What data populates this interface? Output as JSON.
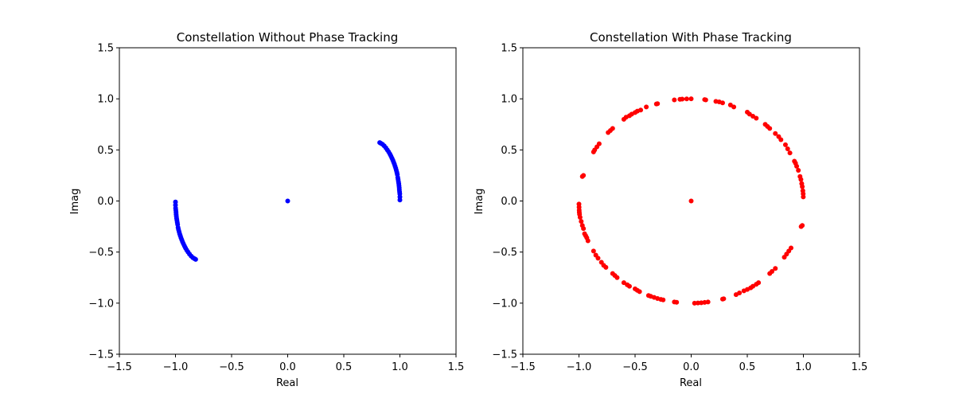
{
  "chart_data": [
    {
      "type": "scatter",
      "title": "Constellation Without Phase Tracking",
      "xlabel": "Real",
      "ylabel": "Imag",
      "xlim": [
        -1.5,
        1.5
      ],
      "ylim": [
        -1.5,
        1.5
      ],
      "xticks": [
        -1.5,
        -1.0,
        -0.5,
        0.0,
        0.5,
        1.0,
        1.5
      ],
      "yticks": [
        -1.5,
        -1.0,
        -0.5,
        0.0,
        0.5,
        1.0,
        1.5
      ],
      "xtick_labels": [
        "−1.5",
        "−1.0",
        "−0.5",
        "0.0",
        "0.5",
        "1.0",
        "1.5"
      ],
      "ytick_labels": [
        "−1.5",
        "−1.0",
        "−0.5",
        "0.0",
        "0.5",
        "1.0",
        "1.5"
      ],
      "grid": false,
      "color": "#0000ff",
      "series": [
        {
          "points": [
            [
              1.0,
              0.01
            ],
            [
              1.0,
              0.04
            ],
            [
              0.999,
              0.07
            ],
            [
              0.997,
              0.09
            ],
            [
              0.995,
              0.11
            ],
            [
              0.994,
              0.13
            ],
            [
              0.992,
              0.15
            ],
            [
              0.99,
              0.17
            ],
            [
              0.987,
              0.19
            ],
            [
              0.984,
              0.21
            ],
            [
              0.981,
              0.23
            ],
            [
              0.977,
              0.26
            ],
            [
              0.973,
              0.28
            ],
            [
              0.968,
              0.3
            ],
            [
              0.963,
              0.32
            ],
            [
              0.957,
              0.34
            ],
            [
              0.951,
              0.36
            ],
            [
              0.944,
              0.38
            ],
            [
              0.937,
              0.4
            ],
            [
              0.929,
              0.42
            ],
            [
              0.92,
              0.44
            ],
            [
              0.911,
              0.46
            ],
            [
              0.9,
              0.48
            ],
            [
              0.888,
              0.5
            ],
            [
              0.875,
              0.52
            ],
            [
              0.86,
              0.54
            ],
            [
              0.845,
              0.555
            ],
            [
              0.83,
              0.565
            ],
            [
              0.82,
              0.572
            ],
            [
              -1.0,
              -0.01
            ],
            [
              -1.0,
              -0.04
            ],
            [
              -0.999,
              -0.07
            ],
            [
              -0.997,
              -0.09
            ],
            [
              -0.995,
              -0.11
            ],
            [
              -0.994,
              -0.13
            ],
            [
              -0.992,
              -0.15
            ],
            [
              -0.99,
              -0.17
            ],
            [
              -0.987,
              -0.19
            ],
            [
              -0.984,
              -0.21
            ],
            [
              -0.981,
              -0.23
            ],
            [
              -0.977,
              -0.26
            ],
            [
              -0.973,
              -0.28
            ],
            [
              -0.968,
              -0.3
            ],
            [
              -0.963,
              -0.32
            ],
            [
              -0.957,
              -0.34
            ],
            [
              -0.951,
              -0.36
            ],
            [
              -0.944,
              -0.38
            ],
            [
              -0.937,
              -0.4
            ],
            [
              -0.929,
              -0.42
            ],
            [
              -0.92,
              -0.44
            ],
            [
              -0.911,
              -0.46
            ],
            [
              -0.9,
              -0.48
            ],
            [
              -0.888,
              -0.5
            ],
            [
              -0.875,
              -0.52
            ],
            [
              -0.86,
              -0.54
            ],
            [
              -0.845,
              -0.555
            ],
            [
              -0.83,
              -0.565
            ],
            [
              -0.82,
              -0.572
            ],
            [
              0.0,
              0.0
            ]
          ]
        }
      ]
    },
    {
      "type": "scatter",
      "title": "Constellation With Phase Tracking",
      "xlabel": "Real",
      "ylabel": "Imag",
      "xlim": [
        -1.5,
        1.5
      ],
      "ylim": [
        -1.5,
        1.5
      ],
      "xticks": [
        -1.5,
        -1.0,
        -0.5,
        0.0,
        0.5,
        1.0,
        1.5
      ],
      "yticks": [
        -1.5,
        -1.0,
        -0.5,
        0.0,
        0.5,
        1.0,
        1.5
      ],
      "xtick_labels": [
        "−1.5",
        "−1.0",
        "−0.5",
        "0.0",
        "0.5",
        "1.0",
        "1.5"
      ],
      "ytick_labels": [
        "−1.5",
        "−1.0",
        "−0.5",
        "0.0",
        "0.5",
        "1.0",
        "1.5"
      ],
      "grid": false,
      "color": "#ff0000",
      "series": [
        {
          "points": [
            [
              0.999,
              0.04
            ],
            [
              0.998,
              0.07
            ],
            [
              0.995,
              0.1
            ],
            [
              0.99,
              0.14
            ],
            [
              0.985,
              0.17
            ],
            [
              0.978,
              0.21
            ],
            [
              0.97,
              0.24
            ],
            [
              0.955,
              0.3
            ],
            [
              0.94,
              0.34
            ],
            [
              0.93,
              0.37
            ],
            [
              0.92,
              0.39
            ],
            [
              0.88,
              0.47
            ],
            [
              0.86,
              0.51
            ],
            [
              0.84,
              0.55
            ],
            [
              0.8,
              0.6
            ],
            [
              0.78,
              0.63
            ],
            [
              0.75,
              0.66
            ],
            [
              0.7,
              0.71
            ],
            [
              0.68,
              0.73
            ],
            [
              0.66,
              0.75
            ],
            [
              0.58,
              0.81
            ],
            [
              0.55,
              0.83
            ],
            [
              0.52,
              0.85
            ],
            [
              0.5,
              0.87
            ],
            [
              0.38,
              0.92
            ],
            [
              0.35,
              0.94
            ],
            [
              0.28,
              0.96
            ],
            [
              0.25,
              0.97
            ],
            [
              0.22,
              0.975
            ],
            [
              0.13,
              0.99
            ],
            [
              0.12,
              0.993
            ],
            [
              0.0,
              1.0
            ],
            [
              -0.04,
              0.999
            ],
            [
              -0.08,
              0.997
            ],
            [
              -0.1,
              0.995
            ],
            [
              -0.15,
              0.99
            ],
            [
              -0.3,
              0.953
            ],
            [
              -0.31,
              0.95
            ],
            [
              -0.4,
              0.92
            ],
            [
              -0.45,
              0.89
            ],
            [
              -0.48,
              0.88
            ],
            [
              -0.5,
              0.866
            ],
            [
              -0.53,
              0.85
            ],
            [
              -0.55,
              0.835
            ],
            [
              -0.58,
              0.82
            ],
            [
              -0.6,
              0.8
            ],
            [
              -0.7,
              0.71
            ],
            [
              -0.72,
              0.69
            ],
            [
              -0.74,
              0.67
            ],
            [
              -0.82,
              0.56
            ],
            [
              -0.84,
              0.53
            ],
            [
              -0.86,
              0.5
            ],
            [
              -0.87,
              0.48
            ],
            [
              -0.97,
              0.24
            ],
            [
              -0.96,
              0.25
            ],
            [
              -1.0,
              -0.03
            ],
            [
              -0.999,
              -0.06
            ],
            [
              -0.998,
              -0.09
            ],
            [
              -0.997,
              -0.11
            ],
            [
              -0.995,
              -0.13
            ],
            [
              -0.99,
              -0.16
            ],
            [
              -0.98,
              -0.2
            ],
            [
              -0.97,
              -0.24
            ],
            [
              -0.96,
              -0.27
            ],
            [
              -0.95,
              -0.32
            ],
            [
              -0.94,
              -0.34
            ],
            [
              -0.93,
              -0.36
            ],
            [
              -0.92,
              -0.39
            ],
            [
              -0.87,
              -0.49
            ],
            [
              -0.85,
              -0.53
            ],
            [
              -0.83,
              -0.56
            ],
            [
              -0.8,
              -0.6
            ],
            [
              -0.78,
              -0.63
            ],
            [
              -0.76,
              -0.65
            ],
            [
              -0.7,
              -0.71
            ],
            [
              -0.68,
              -0.73
            ],
            [
              -0.66,
              -0.75
            ],
            [
              -0.6,
              -0.8
            ],
            [
              -0.57,
              -0.82
            ],
            [
              -0.55,
              -0.835
            ],
            [
              -0.5,
              -0.86
            ],
            [
              -0.48,
              -0.875
            ],
            [
              -0.46,
              -0.887
            ],
            [
              -0.38,
              -0.925
            ],
            [
              -0.36,
              -0.933
            ],
            [
              -0.33,
              -0.944
            ],
            [
              -0.3,
              -0.955
            ],
            [
              -0.27,
              -0.963
            ],
            [
              -0.25,
              -0.968
            ],
            [
              -0.15,
              -0.989
            ],
            [
              -0.13,
              -0.992
            ],
            [
              0.03,
              -1.0
            ],
            [
              0.06,
              -0.998
            ],
            [
              0.09,
              -0.996
            ],
            [
              0.12,
              -0.993
            ],
            [
              0.15,
              -0.989
            ],
            [
              0.28,
              -0.96
            ],
            [
              0.29,
              -0.957
            ],
            [
              0.4,
              -0.917
            ],
            [
              0.43,
              -0.9
            ],
            [
              0.47,
              -0.88
            ],
            [
              0.5,
              -0.866
            ],
            [
              0.53,
              -0.85
            ],
            [
              0.55,
              -0.835
            ],
            [
              0.58,
              -0.815
            ],
            [
              0.6,
              -0.8
            ],
            [
              0.7,
              -0.71
            ],
            [
              0.72,
              -0.69
            ],
            [
              0.75,
              -0.66
            ],
            [
              0.83,
              -0.55
            ],
            [
              0.85,
              -0.52
            ],
            [
              0.87,
              -0.49
            ],
            [
              0.89,
              -0.46
            ],
            [
              0.98,
              -0.25
            ],
            [
              0.99,
              -0.24
            ],
            [
              0.0,
              0.0
            ]
          ]
        }
      ]
    }
  ]
}
